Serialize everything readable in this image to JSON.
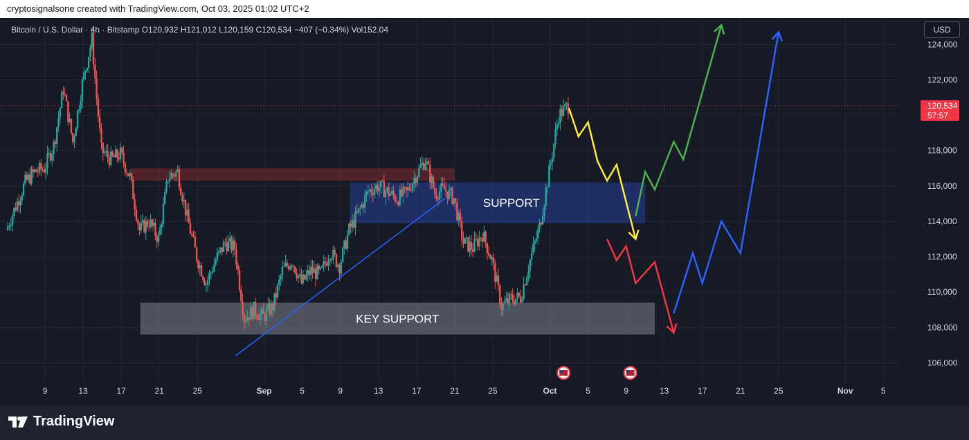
{
  "header": {
    "attribution": "cryptosignalsone created with TradingView.com, Oct 03, 2025 01:02 UTC+2"
  },
  "symbol_line": {
    "text": "Bitcoin / U.S. Dollar · 4h · Bitstamp  O120,932  H121,012  L120,159  C120,534  −407 (−0.34%)  Vol152.04"
  },
  "currency_button": "USD",
  "footer": {
    "logo_text": "TradingView"
  },
  "colors": {
    "up": "#26a69a",
    "down": "#ef5350",
    "price_label_bg": "#f23645",
    "support_zone": "#2a3f9c",
    "key_support_zone": "#9598a1",
    "resistance_zone": "#802b2e",
    "yellow": "#ffeb3b",
    "green": "#4caf50",
    "red": "#f23645",
    "blue": "#2962ff"
  },
  "chart_data": {
    "type": "candlestick",
    "timeframe": "4h",
    "y_axis": {
      "ticks": [
        106000,
        108000,
        110000,
        112000,
        114000,
        116000,
        118000,
        120000,
        122000,
        124000
      ],
      "tick_labels": [
        "106,000",
        "108,000",
        "110,000",
        "112,000",
        "114,000",
        "116,000",
        "118,000",
        "120,000",
        "122,000",
        "124,000"
      ],
      "range": [
        105000,
        125500
      ]
    },
    "x_axis": {
      "range": [
        "2025-08-05",
        "2025-11-06"
      ],
      "ticks": [
        {
          "date": "2025-08-09",
          "label": "9"
        },
        {
          "date": "2025-08-13",
          "label": "13"
        },
        {
          "date": "2025-08-17",
          "label": "17"
        },
        {
          "date": "2025-08-21",
          "label": "21"
        },
        {
          "date": "2025-08-25",
          "label": "25"
        },
        {
          "date": "2025-09-01",
          "label": "Sep"
        },
        {
          "date": "2025-09-05",
          "label": "5"
        },
        {
          "date": "2025-09-09",
          "label": "9"
        },
        {
          "date": "2025-09-13",
          "label": "13"
        },
        {
          "date": "2025-09-17",
          "label": "17"
        },
        {
          "date": "2025-09-21",
          "label": "21"
        },
        {
          "date": "2025-09-25",
          "label": "25"
        },
        {
          "date": "2025-10-01",
          "label": "Oct"
        },
        {
          "date": "2025-10-05",
          "label": "5"
        },
        {
          "date": "2025-10-09",
          "label": "9"
        },
        {
          "date": "2025-10-13",
          "label": "13"
        },
        {
          "date": "2025-10-17",
          "label": "17"
        },
        {
          "date": "2025-10-21",
          "label": "21"
        },
        {
          "date": "2025-10-25",
          "label": "25"
        },
        {
          "date": "2025-11-01",
          "label": "Nov"
        },
        {
          "date": "2025-11-05",
          "label": "5"
        }
      ]
    },
    "price_path": [
      {
        "date": "2025-08-05",
        "price": 113500
      },
      {
        "date": "2025-08-07",
        "price": 116200
      },
      {
        "date": "2025-08-08",
        "price": 116800
      },
      {
        "date": "2025-08-09",
        "price": 117000
      },
      {
        "date": "2025-08-10",
        "price": 118300
      },
      {
        "date": "2025-08-11",
        "price": 121500
      },
      {
        "date": "2025-08-12",
        "price": 118500
      },
      {
        "date": "2025-08-13",
        "price": 121800
      },
      {
        "date": "2025-08-14",
        "price": 124300
      },
      {
        "date": "2025-08-14",
        "price": 121000
      },
      {
        "date": "2025-08-15",
        "price": 118000
      },
      {
        "date": "2025-08-16",
        "price": 117500
      },
      {
        "date": "2025-08-17",
        "price": 117800
      },
      {
        "date": "2025-08-18",
        "price": 116500
      },
      {
        "date": "2025-08-19",
        "price": 113500
      },
      {
        "date": "2025-08-20",
        "price": 114000
      },
      {
        "date": "2025-08-21",
        "price": 113000
      },
      {
        "date": "2025-08-22",
        "price": 116500
      },
      {
        "date": "2025-08-23",
        "price": 116800
      },
      {
        "date": "2025-08-24",
        "price": 114200
      },
      {
        "date": "2025-08-25",
        "price": 112000
      },
      {
        "date": "2025-08-26",
        "price": 110500
      },
      {
        "date": "2025-08-27",
        "price": 111800
      },
      {
        "date": "2025-08-28",
        "price": 112800
      },
      {
        "date": "2025-08-29",
        "price": 112500
      },
      {
        "date": "2025-08-30",
        "price": 108500
      },
      {
        "date": "2025-08-31",
        "price": 109000
      },
      {
        "date": "2025-09-01",
        "price": 108600
      },
      {
        "date": "2025-09-02",
        "price": 109200
      },
      {
        "date": "2025-09-03",
        "price": 111200
      },
      {
        "date": "2025-09-04",
        "price": 111800
      },
      {
        "date": "2025-09-05",
        "price": 110500
      },
      {
        "date": "2025-09-06",
        "price": 111200
      },
      {
        "date": "2025-09-07",
        "price": 111000
      },
      {
        "date": "2025-09-08",
        "price": 112300
      },
      {
        "date": "2025-09-09",
        "price": 111500
      },
      {
        "date": "2025-09-10",
        "price": 113500
      },
      {
        "date": "2025-09-11",
        "price": 114500
      },
      {
        "date": "2025-09-12",
        "price": 115700
      },
      {
        "date": "2025-09-13",
        "price": 116000
      },
      {
        "date": "2025-09-14",
        "price": 115700
      },
      {
        "date": "2025-09-15",
        "price": 115300
      },
      {
        "date": "2025-09-16",
        "price": 115600
      },
      {
        "date": "2025-09-17",
        "price": 116600
      },
      {
        "date": "2025-09-18",
        "price": 117500
      },
      {
        "date": "2025-09-19",
        "price": 115600
      },
      {
        "date": "2025-09-20",
        "price": 115800
      },
      {
        "date": "2025-09-21",
        "price": 115300
      },
      {
        "date": "2025-09-22",
        "price": 112800
      },
      {
        "date": "2025-09-23",
        "price": 112500
      },
      {
        "date": "2025-09-24",
        "price": 113300
      },
      {
        "date": "2025-09-25",
        "price": 111800
      },
      {
        "date": "2025-09-26",
        "price": 109200
      },
      {
        "date": "2025-09-27",
        "price": 109600
      },
      {
        "date": "2025-09-28",
        "price": 109700
      },
      {
        "date": "2025-09-29",
        "price": 111800
      },
      {
        "date": "2025-09-30",
        "price": 113700
      },
      {
        "date": "2025-10-01",
        "price": 116800
      },
      {
        "date": "2025-10-02",
        "price": 120000
      },
      {
        "date": "2025-10-03",
        "price": 120534
      }
    ],
    "last_price": {
      "value": 120534,
      "label": "120,534",
      "countdown": "57:57"
    },
    "zones": [
      {
        "name": "resistance",
        "from_date": "2025-08-18",
        "to_date": "2025-09-21",
        "low": 116300,
        "high": 117000
      },
      {
        "name": "support",
        "label": "SUPPORT",
        "from_date": "2025-09-10",
        "to_date": "2025-10-11",
        "low": 113900,
        "high": 116200
      },
      {
        "name": "key-support",
        "label": "KEY SUPPORT",
        "from_date": "2025-08-19",
        "to_date": "2025-10-12",
        "low": 107600,
        "high": 109400
      }
    ],
    "trendline": {
      "start": {
        "date": "2025-08-29",
        "price": 106400
      },
      "end": {
        "date": "2025-09-20",
        "price": 115300
      }
    },
    "projections": [
      {
        "name": "yellow",
        "color": "#ffeb3b",
        "points": [
          {
            "date": "2025-10-03",
            "price": 120400
          },
          {
            "date": "2025-10-04",
            "price": 118800
          },
          {
            "date": "2025-10-05",
            "price": 119600
          },
          {
            "date": "2025-10-06",
            "price": 117400
          },
          {
            "date": "2025-10-07",
            "price": 116300
          },
          {
            "date": "2025-10-08",
            "price": 117200
          },
          {
            "date": "2025-10-10",
            "price": 113000
          }
        ]
      },
      {
        "name": "green",
        "color": "#4caf50",
        "points": [
          {
            "date": "2025-10-10",
            "price": 114300
          },
          {
            "date": "2025-10-11",
            "price": 116800
          },
          {
            "date": "2025-10-12",
            "price": 115800
          },
          {
            "date": "2025-10-14",
            "price": 118500
          },
          {
            "date": "2025-10-15",
            "price": 117500
          },
          {
            "date": "2025-10-19",
            "price": 125100
          }
        ]
      },
      {
        "name": "red",
        "color": "#f23645",
        "points": [
          {
            "date": "2025-10-07",
            "price": 113000
          },
          {
            "date": "2025-10-08",
            "price": 111800
          },
          {
            "date": "2025-10-09",
            "price": 112600
          },
          {
            "date": "2025-10-10",
            "price": 110500
          },
          {
            "date": "2025-10-12",
            "price": 111700
          },
          {
            "date": "2025-10-14",
            "price": 107700
          }
        ]
      },
      {
        "name": "blue",
        "color": "#2962ff",
        "points": [
          {
            "date": "2025-10-14",
            "price": 108800
          },
          {
            "date": "2025-10-16",
            "price": 112200
          },
          {
            "date": "2025-10-17",
            "price": 110500
          },
          {
            "date": "2025-10-19",
            "price": 114000
          },
          {
            "date": "2025-10-21",
            "price": 112200
          },
          {
            "date": "2025-10-25",
            "price": 124700
          }
        ]
      }
    ],
    "event_markers": [
      {
        "date": "2025-10-02",
        "icon": "us-flag-icon"
      },
      {
        "date": "2025-10-09",
        "icon": "us-flag-icon"
      }
    ]
  }
}
